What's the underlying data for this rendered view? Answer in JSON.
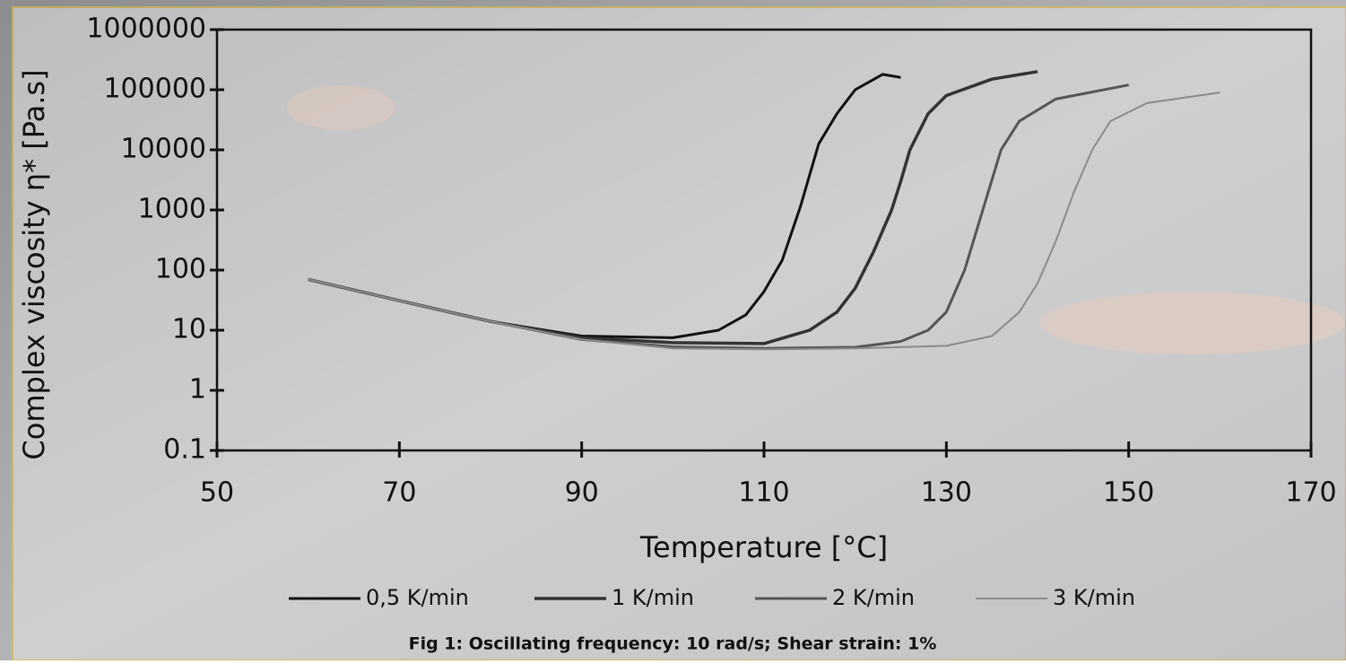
{
  "chart_data": {
    "type": "line",
    "x_label": "Temperature [°C]",
    "y_label": "Complex viscosity  η* [Pa.s]",
    "caption": "Fig 1: Oscillating frequency: 10 rad/s; Shear strain: 1%",
    "xlim": [
      50,
      170
    ],
    "xticks": [
      50,
      70,
      90,
      110,
      130,
      150,
      170
    ],
    "ylim": [
      0.1,
      1000000
    ],
    "yticks": [
      0.1,
      1,
      10,
      100,
      1000,
      10000,
      100000,
      1000000
    ],
    "y_scale": "log",
    "legend": "bottom",
    "series": [
      {
        "name": "0,5 K/min",
        "color": "#111111",
        "x": [
          60,
          70,
          80,
          90,
          100,
          105,
          108,
          110,
          112,
          114,
          115,
          116,
          118,
          120,
          123,
          125
        ],
        "values": [
          70,
          31,
          14,
          8,
          7.5,
          10,
          18,
          44,
          146,
          1150,
          3800,
          12600,
          40000,
          100000,
          180000,
          160000
        ]
      },
      {
        "name": "1 K/min",
        "color": "#333333",
        "x": [
          60,
          70,
          80,
          90,
          100,
          110,
          115,
          118,
          120,
          122,
          124,
          125,
          126,
          128,
          130,
          135,
          140
        ],
        "values": [
          70,
          31,
          14,
          7.5,
          6.2,
          6,
          10,
          20,
          50,
          200,
          1000,
          3000,
          10000,
          40000,
          80000,
          150000,
          200000
        ]
      },
      {
        "name": "2 K/min",
        "color": "#555555",
        "x": [
          60,
          70,
          80,
          90,
          100,
          110,
          120,
          125,
          128,
          130,
          132,
          134,
          136,
          138,
          142,
          150
        ],
        "values": [
          70,
          31,
          14,
          7,
          5.3,
          5,
          5.2,
          6.5,
          10,
          20,
          100,
          1000,
          10000,
          30000,
          70000,
          120000
        ]
      },
      {
        "name": "3 K/min",
        "color": "#8a8a8a",
        "x": [
          60,
          70,
          80,
          90,
          100,
          110,
          120,
          130,
          135,
          138,
          140,
          142,
          144,
          146,
          148,
          152,
          160
        ],
        "values": [
          70,
          31,
          14,
          7,
          5,
          4.8,
          5,
          5.5,
          8,
          20,
          60,
          300,
          2000,
          10000,
          30000,
          60000,
          90000
        ]
      }
    ]
  }
}
